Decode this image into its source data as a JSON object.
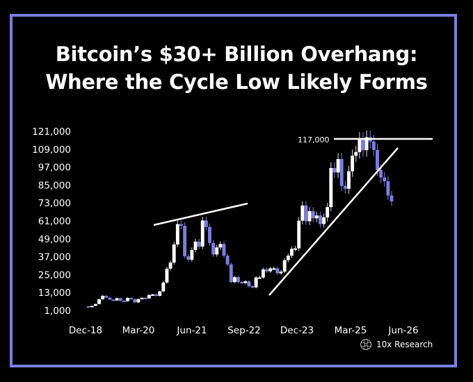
{
  "title_line1": "Bitcoin’s $30+ Billion Overhang:",
  "title_line2": "Where the Cycle Low Likely Forms",
  "brand": {
    "name": "10x Research",
    "icon": "10x-research-logo-icon"
  },
  "colors": {
    "background": "#000000",
    "frame": "#7b7ee0",
    "up_candle": "#ffffff",
    "down_candle": "#7b7ee0",
    "text": "#ffffff"
  },
  "chart_data": {
    "type": "candlestick",
    "title": "",
    "xlabel": "",
    "ylabel": "",
    "ylim": [
      1000,
      121000
    ],
    "ytick_labels": [
      "121,000",
      "109,000",
      "97,000",
      "85,000",
      "73,000",
      "61,000",
      "49,000",
      "37,000",
      "25,000",
      "13,000",
      "1,000"
    ],
    "ytick_values": [
      121000,
      109000,
      97000,
      85000,
      73000,
      61000,
      49000,
      37000,
      25000,
      13000,
      1000
    ],
    "xtick_labels": [
      "Dec-18",
      "Mar-20",
      "Jun-21",
      "Sep-22",
      "Dec-23",
      "Mar-25",
      "Jun-26"
    ],
    "grid": false,
    "annotations": [
      {
        "text": "117,000",
        "value": 117000
      }
    ],
    "series": [
      {
        "values": [
          3800,
          3500,
          4100,
          5300,
          8500,
          10800,
          9600,
          8300,
          7700,
          9200,
          7500,
          7200,
          9400,
          8600,
          6400,
          8600,
          9500,
          9100,
          11400,
          11700,
          10800,
          13800,
          19700,
          29000,
          33100,
          45200,
          58800,
          57700,
          37300,
          35000,
          41500,
          47100,
          43800,
          61300,
          56900,
          46200,
          38500,
          43200,
          45500,
          37700,
          31800,
          20000,
          23300,
          20000,
          19400,
          20500,
          17200,
          16500,
          23100,
          23100,
          28500,
          27200,
          29200,
          29200,
          25900,
          27000,
          34700,
          37700,
          42300,
          42600,
          61100,
          71300,
          60700,
          67500,
          62700,
          64600,
          58900,
          63300,
          70200,
          96400,
          93400,
          102400,
          84400,
          82500,
          94200,
          104600,
          107100,
          115800,
          108300,
          117000,
          114100,
          108500,
          95000,
          90000,
          87500,
          78000,
          74000
        ]
      }
    ]
  }
}
